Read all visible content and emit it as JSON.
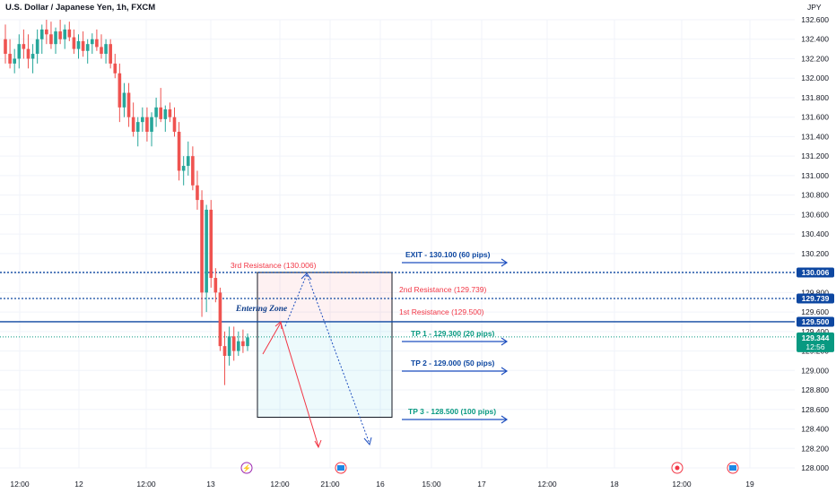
{
  "header": {
    "title": "U.S. Dollar / Japanese Yen, 1h, FXCM",
    "currency": "JPY"
  },
  "colors": {
    "bull": "#26a69a",
    "bear": "#ef5350",
    "blue": "#0d47a1",
    "teal": "#089981",
    "red": "#f23645",
    "grid": "#f0f3fa"
  },
  "chart_data": {
    "type": "candlestick",
    "instrument": "U.S. Dollar / Japanese Yen",
    "timeframe": "1h",
    "source": "FXCM",
    "ylim": [
      128.0,
      132.6
    ],
    "y_ticks": [
      "132.600",
      "132.400",
      "132.200",
      "132.000",
      "131.800",
      "131.600",
      "131.400",
      "131.200",
      "131.000",
      "130.800",
      "130.600",
      "130.400",
      "130.200",
      "130.000",
      "129.800",
      "129.600",
      "129.400",
      "129.200",
      "129.000",
      "128.800",
      "128.600",
      "128.400",
      "128.200",
      "128.000"
    ],
    "x_ticks": [
      "12:00",
      "12",
      "12:00",
      "13",
      "12:00",
      "21:00",
      "16",
      "15:00",
      "17",
      "12:00",
      "18",
      "12:00",
      "19"
    ],
    "candles": [
      [
        132.4,
        132.55,
        132.15,
        132.25
      ],
      [
        132.25,
        132.4,
        132.1,
        132.15
      ],
      [
        132.15,
        132.3,
        132.05,
        132.2
      ],
      [
        132.2,
        132.45,
        132.1,
        132.35
      ],
      [
        132.35,
        132.5,
        132.2,
        132.3
      ],
      [
        132.3,
        132.45,
        132.1,
        132.2
      ],
      [
        132.2,
        132.35,
        132.05,
        132.25
      ],
      [
        132.25,
        132.5,
        132.15,
        132.4
      ],
      [
        132.4,
        132.55,
        132.25,
        132.5
      ],
      [
        132.5,
        132.6,
        132.35,
        132.45
      ],
      [
        132.45,
        132.58,
        132.3,
        132.35
      ],
      [
        132.35,
        132.52,
        132.25,
        132.48
      ],
      [
        132.48,
        132.6,
        132.35,
        132.4
      ],
      [
        132.4,
        132.55,
        132.3,
        132.5
      ],
      [
        132.5,
        132.58,
        132.38,
        132.42
      ],
      [
        132.42,
        132.5,
        132.25,
        132.3
      ],
      [
        132.3,
        132.45,
        132.2,
        132.38
      ],
      [
        132.38,
        132.48,
        132.22,
        132.28
      ],
      [
        132.28,
        132.4,
        132.15,
        132.35
      ],
      [
        132.35,
        132.46,
        132.25,
        132.4
      ],
      [
        132.4,
        132.5,
        132.28,
        132.32
      ],
      [
        132.32,
        132.45,
        132.2,
        132.25
      ],
      [
        132.25,
        132.4,
        132.15,
        132.35
      ],
      [
        132.35,
        132.4,
        132.1,
        132.15
      ],
      [
        132.15,
        132.25,
        132.0,
        132.05
      ],
      [
        132.05,
        132.15,
        131.55,
        131.7
      ],
      [
        131.7,
        131.95,
        131.6,
        131.85
      ],
      [
        131.85,
        131.95,
        131.5,
        131.6
      ],
      [
        131.6,
        131.75,
        131.4,
        131.45
      ],
      [
        131.45,
        131.6,
        131.3,
        131.55
      ],
      [
        131.55,
        131.7,
        131.45,
        131.6
      ],
      [
        131.6,
        131.7,
        131.35,
        131.45
      ],
      [
        131.45,
        131.65,
        131.3,
        131.6
      ],
      [
        131.6,
        131.8,
        131.5,
        131.7
      ],
      [
        131.7,
        131.9,
        131.55,
        131.58
      ],
      [
        131.58,
        131.72,
        131.45,
        131.68
      ],
      [
        131.68,
        131.75,
        131.55,
        131.6
      ],
      [
        131.6,
        131.7,
        131.4,
        131.45
      ],
      [
        131.45,
        131.55,
        130.95,
        131.05
      ],
      [
        131.05,
        131.2,
        130.9,
        131.1
      ],
      [
        131.1,
        131.35,
        131.0,
        131.2
      ],
      [
        131.2,
        131.3,
        130.85,
        130.9
      ],
      [
        130.9,
        131.05,
        130.65,
        130.75
      ],
      [
        130.75,
        130.85,
        129.55,
        129.8
      ],
      [
        129.8,
        130.7,
        129.6,
        130.65
      ],
      [
        130.65,
        130.75,
        129.85,
        129.95
      ],
      [
        129.95,
        130.05,
        129.7,
        129.8
      ],
      [
        129.8,
        129.85,
        129.2,
        129.25
      ],
      [
        129.25,
        129.4,
        128.85,
        129.15
      ],
      [
        129.15,
        129.45,
        129.05,
        129.35
      ],
      [
        129.35,
        129.45,
        129.1,
        129.2
      ],
      [
        129.2,
        129.4,
        129.15,
        129.3
      ],
      [
        129.3,
        129.42,
        129.18,
        129.25
      ],
      [
        129.25,
        129.38,
        129.2,
        129.34
      ]
    ],
    "current_price": "129.344",
    "countdown": "12:56",
    "levels": [
      {
        "label": "EXIT - 130.100 (60 pips)",
        "price": 130.1,
        "color": "#0d47a1"
      },
      {
        "label": "3rd Resistance (130.006)",
        "price": 130.006,
        "color": "#f23645"
      },
      {
        "label": "2nd Resistance (129.739)",
        "price": 129.739,
        "color": "#f23645"
      },
      {
        "label": "1st Resistance (129.500)",
        "price": 129.5,
        "color": "#f23645"
      },
      {
        "label": "TP 1 - 129.300 (20 pips)",
        "price": 129.3,
        "color": "#089981"
      },
      {
        "label": "TP 2 - 129.000 (50 pips)",
        "price": 129.0,
        "color": "#0d47a1"
      },
      {
        "label": "TP 3 - 128.500 (100 pips)",
        "price": 128.5,
        "color": "#089981"
      }
    ],
    "price_tags": [
      {
        "value": "130.006",
        "price": 130.006,
        "color": "#0d47a1"
      },
      {
        "value": "129.739",
        "price": 129.739,
        "color": "#0d47a1"
      },
      {
        "value": "129.500",
        "price": 129.5,
        "color": "#0d47a1"
      }
    ],
    "zone_label": "Entering Zone",
    "zone_top": 130.006,
    "zone_mid": 129.5,
    "zone_bottom": 128.52
  }
}
